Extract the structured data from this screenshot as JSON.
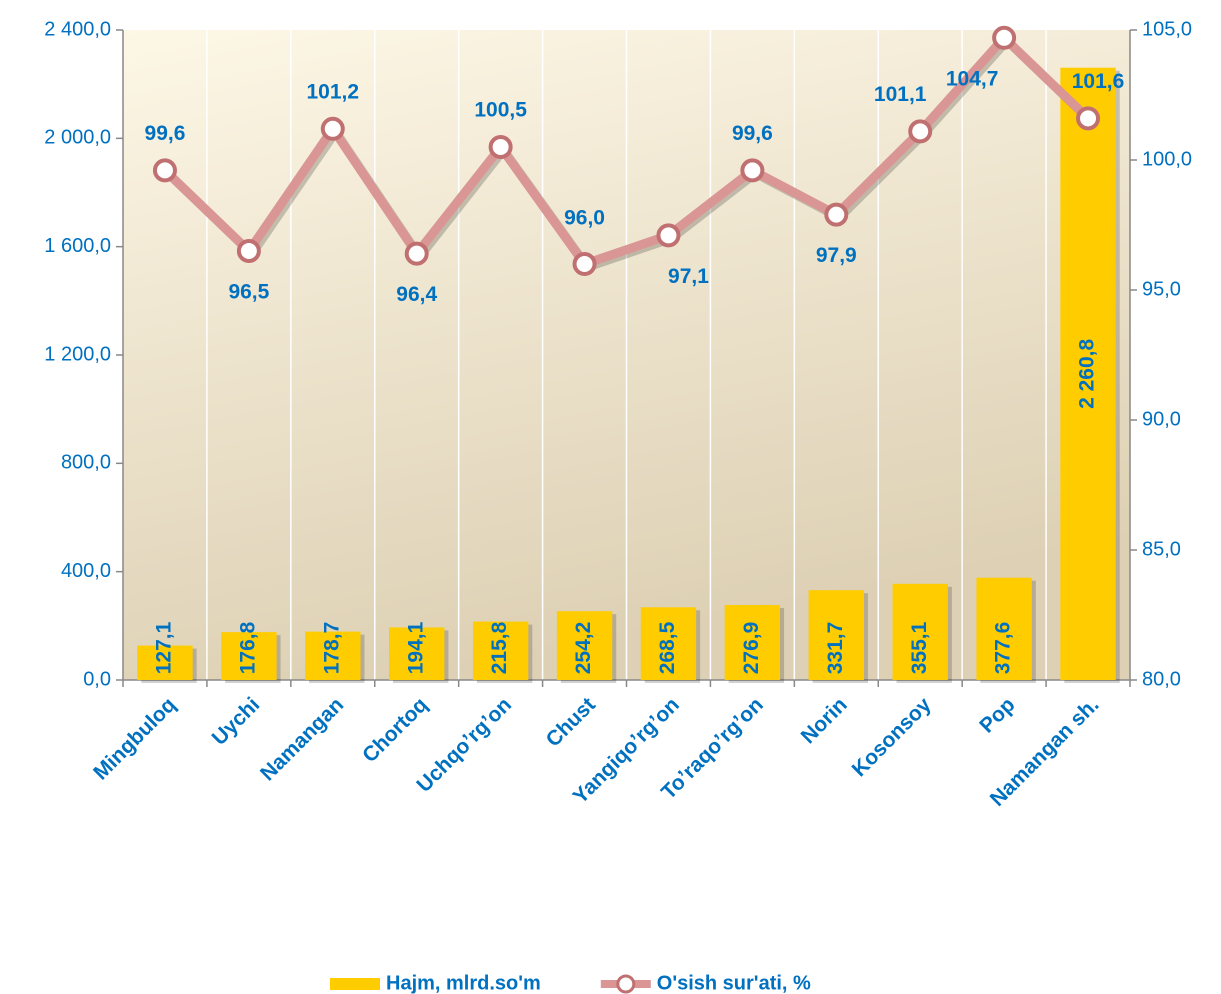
{
  "chart_data": {
    "type": "bar_line",
    "categories": [
      "Mingbuloq",
      "Uychi",
      "Namangan",
      "Chortoq",
      "Uchqo’rg’on",
      "Chust",
      "Yangiqo’rg’on",
      "To’raqo’rg’on",
      "Norin",
      "Kosonsoy",
      "Pop",
      "Namangan sh."
    ],
    "series": [
      {
        "name": "Hajm, mlrd.so'm",
        "type": "bar",
        "color": "#ffcc00",
        "values": [
          127.1,
          176.8,
          178.7,
          194.1,
          215.8,
          254.2,
          268.5,
          276.9,
          331.7,
          355.1,
          377.6,
          2260.8
        ],
        "value_labels": [
          "127,1",
          "176,8",
          "178,7",
          "194,1",
          "215,8",
          "254,2",
          "268,5",
          "276,9",
          "331,7",
          "355,1",
          "377,6",
          "2 260,8"
        ]
      },
      {
        "name": "O'sish  sur'ati, %",
        "type": "line",
        "axis": "y2",
        "color": "#d99694",
        "values": [
          99.6,
          96.5,
          101.2,
          96.4,
          100.5,
          96.0,
          97.1,
          99.6,
          97.9,
          101.1,
          104.7,
          101.6
        ],
        "value_labels": [
          "99,6",
          "96,5",
          "101,2",
          "96,4",
          "100,5",
          "96,0",
          "97,1",
          "99,6",
          "97,9",
          "101,1",
          "104,7",
          "101,6"
        ]
      }
    ],
    "ylim": [
      0,
      2400
    ],
    "yticks": [
      {
        "value": 0,
        "label": "0,0"
      },
      {
        "value": 400,
        "label": "400,0"
      },
      {
        "value": 800,
        "label": "800,0"
      },
      {
        "value": 1200,
        "label": "1 200,0"
      },
      {
        "value": 1600,
        "label": "1 600,0"
      },
      {
        "value": 2000,
        "label": "2 000,0"
      },
      {
        "value": 2400,
        "label": "2 400,0"
      }
    ],
    "y2lim": [
      80,
      105
    ],
    "y2ticks": [
      {
        "value": 80,
        "label": "80,0"
      },
      {
        "value": 85,
        "label": "85,0"
      },
      {
        "value": 90,
        "label": "90,0"
      },
      {
        "value": 95,
        "label": "95,0"
      },
      {
        "value": 100,
        "label": "100,0"
      },
      {
        "value": 105,
        "label": "105,0"
      }
    ],
    "legend": "bottom"
  }
}
